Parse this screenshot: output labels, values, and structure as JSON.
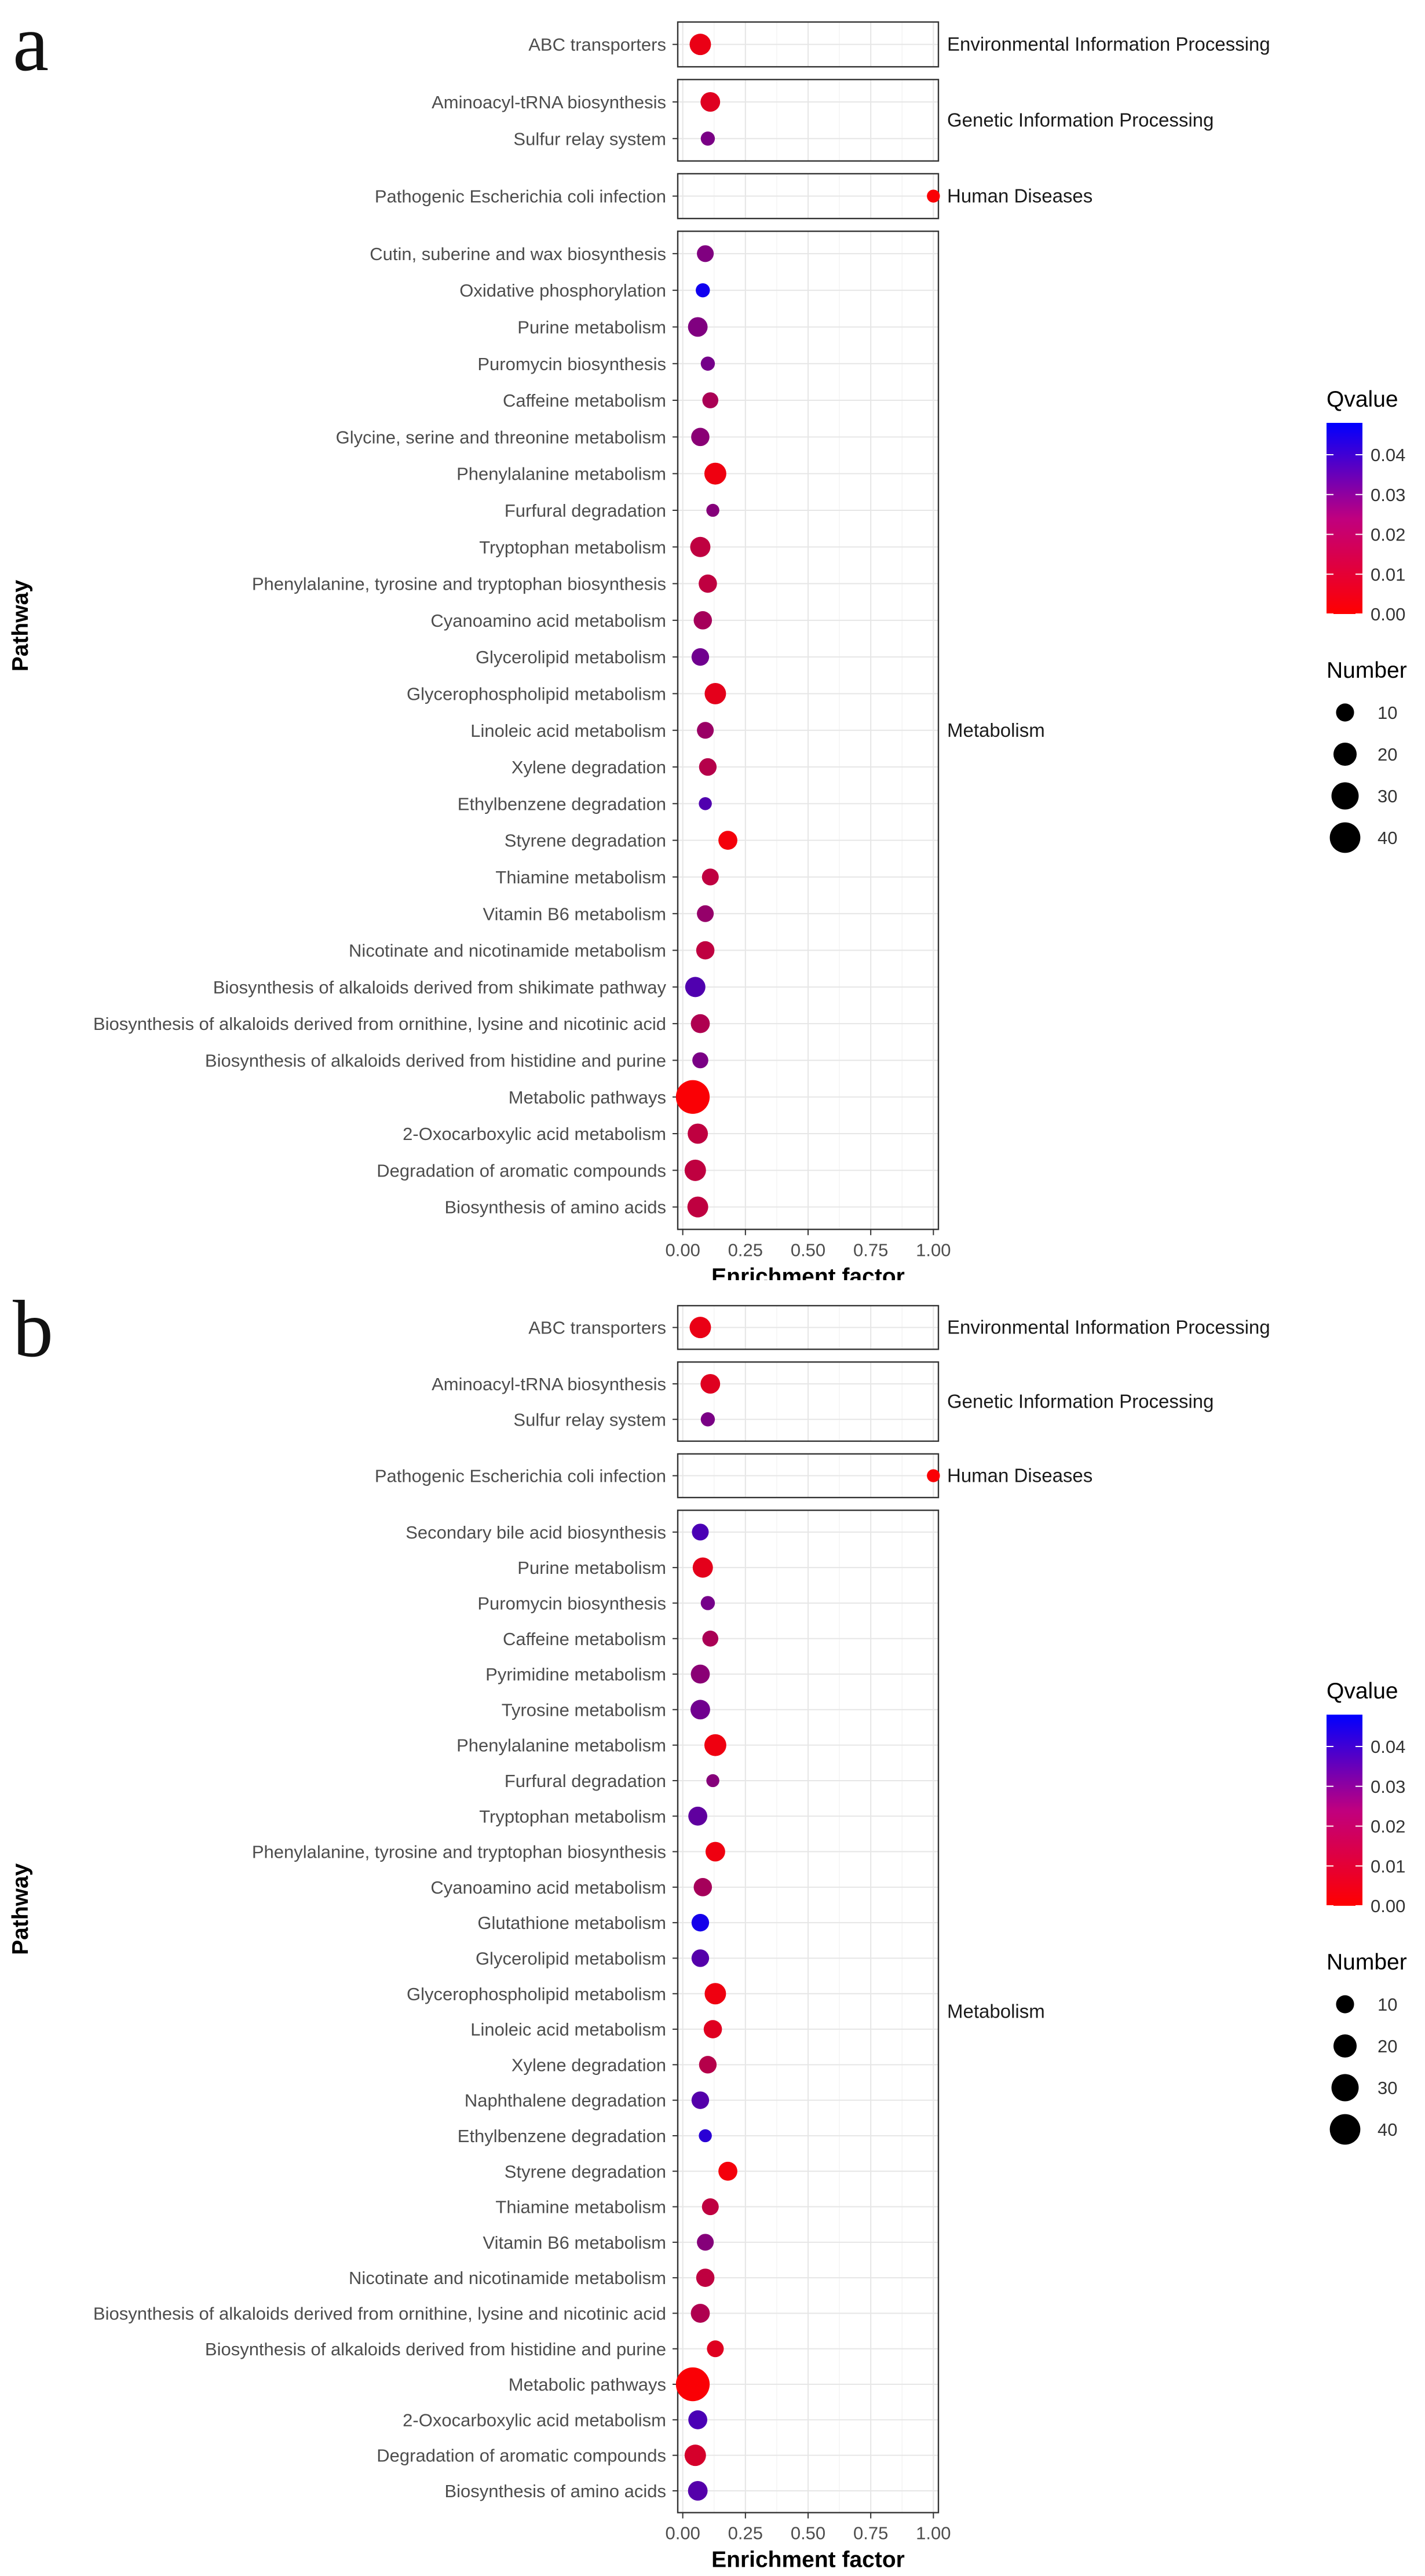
{
  "chart_data": [
    {
      "type": "scatter",
      "panel_letter": "a",
      "xlabel": "Enrichment factor",
      "ylabel": "Pathway",
      "xlim": [
        -0.02,
        1.02
      ],
      "xticks": [
        "0.00",
        "0.25",
        "0.50",
        "0.75",
        "1.00"
      ],
      "color_legend": {
        "title": "Qvalue",
        "ticks": [
          "0.04",
          "0.03",
          "0.02",
          "0.01",
          "0.00"
        ],
        "low_color": "#ff0000",
        "high_color": "#0000ff",
        "max": 0.048
      },
      "size_legend": {
        "title": "Number",
        "values": [
          10,
          20,
          30,
          40
        ]
      },
      "groups": [
        {
          "name": "Environmental Information Processing",
          "pathways": [
            {
              "name": "ABC transporters",
              "x": 0.07,
              "size": 14,
              "q": 0.004
            }
          ]
        },
        {
          "name": "Genetic Information Processing",
          "pathways": [
            {
              "name": "Aminoacyl-tRNA biosynthesis",
              "x": 0.11,
              "size": 11,
              "q": 0.006
            },
            {
              "name": "Sulfur relay system",
              "x": 0.1,
              "size": 4,
              "q": 0.025
            }
          ]
        },
        {
          "name": "Human Diseases",
          "pathways": [
            {
              "name": "Pathogenic Escherichia coli infection",
              "x": 1.0,
              "size": 3,
              "q": 0.001
            }
          ]
        },
        {
          "name": "Metabolism",
          "pathways": [
            {
              "name": "Cutin, suberine and wax biosynthesis",
              "x": 0.09,
              "size": 7,
              "q": 0.024
            },
            {
              "name": "Oxidative phosphorylation",
              "x": 0.08,
              "size": 4,
              "q": 0.045
            },
            {
              "name": "Purine metabolism",
              "x": 0.06,
              "size": 11,
              "q": 0.024
            },
            {
              "name": "Puromycin biosynthesis",
              "x": 0.1,
              "size": 4,
              "q": 0.026
            },
            {
              "name": "Caffeine metabolism",
              "x": 0.11,
              "size": 6,
              "q": 0.016
            },
            {
              "name": "Glycine, serine and threonine metabolism",
              "x": 0.07,
              "size": 9,
              "q": 0.022
            },
            {
              "name": "Phenylalanine metabolism",
              "x": 0.13,
              "size": 15,
              "q": 0.003
            },
            {
              "name": "Furfural degradation",
              "x": 0.12,
              "size": 3,
              "q": 0.023
            },
            {
              "name": "Tryptophan metabolism",
              "x": 0.07,
              "size": 12,
              "q": 0.012
            },
            {
              "name": "Phenylalanine, tyrosine and tryptophan biosynthesis",
              "x": 0.1,
              "size": 9,
              "q": 0.012
            },
            {
              "name": "Cyanoamino acid metabolism",
              "x": 0.08,
              "size": 9,
              "q": 0.017
            },
            {
              "name": "Glycerolipid metabolism",
              "x": 0.07,
              "size": 8,
              "q": 0.027
            },
            {
              "name": "Glycerophospholipid metabolism",
              "x": 0.13,
              "size": 14,
              "q": 0.005
            },
            {
              "name": "Linoleic acid metabolism",
              "x": 0.09,
              "size": 7,
              "q": 0.019
            },
            {
              "name": "Xylene degradation",
              "x": 0.1,
              "size": 8,
              "q": 0.014
            },
            {
              "name": "Ethylbenzene degradation",
              "x": 0.09,
              "size": 3,
              "q": 0.033
            },
            {
              "name": "Styrene degradation",
              "x": 0.18,
              "size": 10,
              "q": 0.002
            },
            {
              "name": "Thiamine metabolism",
              "x": 0.11,
              "size": 7,
              "q": 0.012
            },
            {
              "name": "Vitamin B6 metabolism",
              "x": 0.09,
              "size": 7,
              "q": 0.02
            },
            {
              "name": "Nicotinate and nicotinamide metabolism",
              "x": 0.09,
              "size": 9,
              "q": 0.012
            },
            {
              "name": "Biosynthesis of alkaloids derived from shikimate pathway",
              "x": 0.05,
              "size": 12,
              "q": 0.033
            },
            {
              "name": "Biosynthesis of alkaloids derived from ornithine, lysine and nicotinic acid",
              "x": 0.07,
              "size": 10,
              "q": 0.015
            },
            {
              "name": "Biosynthesis of alkaloids derived from histidine and purine",
              "x": 0.07,
              "size": 6,
              "q": 0.025
            },
            {
              "name": "Metabolic pathways",
              "x": 0.04,
              "size": 45,
              "q": 0.001
            },
            {
              "name": "2-Oxocarboxylic acid metabolism",
              "x": 0.06,
              "size": 12,
              "q": 0.012
            },
            {
              "name": "Degradation of aromatic compounds",
              "x": 0.05,
              "size": 14,
              "q": 0.012
            },
            {
              "name": "Biosynthesis of amino acids",
              "x": 0.06,
              "size": 13,
              "q": 0.012
            }
          ]
        }
      ]
    },
    {
      "type": "scatter",
      "panel_letter": "b",
      "xlabel": "Enrichment factor",
      "ylabel": "Pathway",
      "xlim": [
        -0.02,
        1.02
      ],
      "xticks": [
        "0.00",
        "0.25",
        "0.50",
        "0.75",
        "1.00"
      ],
      "color_legend": {
        "title": "Qvalue",
        "ticks": [
          "0.04",
          "0.03",
          "0.02",
          "0.01",
          "0.00"
        ],
        "low_color": "#ff0000",
        "high_color": "#0000ff",
        "max": 0.048
      },
      "size_legend": {
        "title": "Number",
        "values": [
          10,
          20,
          30,
          40
        ]
      },
      "groups": [
        {
          "name": "Environmental Information Processing",
          "pathways": [
            {
              "name": "ABC transporters",
              "x": 0.07,
              "size": 14,
              "q": 0.004
            }
          ]
        },
        {
          "name": "Genetic Information Processing",
          "pathways": [
            {
              "name": "Aminoacyl-tRNA biosynthesis",
              "x": 0.11,
              "size": 11,
              "q": 0.006
            },
            {
              "name": "Sulfur relay system",
              "x": 0.1,
              "size": 4,
              "q": 0.025
            }
          ]
        },
        {
          "name": "Human Diseases",
          "pathways": [
            {
              "name": "Pathogenic Escherichia coli infection",
              "x": 1.0,
              "size": 3,
              "q": 0.001
            }
          ]
        },
        {
          "name": "Metabolism",
          "pathways": [
            {
              "name": "Secondary bile acid biosynthesis",
              "x": 0.07,
              "size": 7,
              "q": 0.034
            },
            {
              "name": "Purine metabolism",
              "x": 0.08,
              "size": 12,
              "q": 0.005
            },
            {
              "name": "Puromycin biosynthesis",
              "x": 0.1,
              "size": 4,
              "q": 0.026
            },
            {
              "name": "Caffeine metabolism",
              "x": 0.11,
              "size": 6,
              "q": 0.016
            },
            {
              "name": "Pyrimidine metabolism",
              "x": 0.07,
              "size": 10,
              "q": 0.022
            },
            {
              "name": "Tyrosine metabolism",
              "x": 0.07,
              "size": 11,
              "q": 0.027
            },
            {
              "name": "Phenylalanine metabolism",
              "x": 0.13,
              "size": 15,
              "q": 0.003
            },
            {
              "name": "Furfural degradation",
              "x": 0.12,
              "size": 3,
              "q": 0.023
            },
            {
              "name": "Tryptophan metabolism",
              "x": 0.06,
              "size": 10,
              "q": 0.03
            },
            {
              "name": "Phenylalanine, tyrosine and tryptophan biosynthesis",
              "x": 0.13,
              "size": 11,
              "q": 0.003
            },
            {
              "name": "Cyanoamino acid metabolism",
              "x": 0.08,
              "size": 9,
              "q": 0.017
            },
            {
              "name": "Glutathione metabolism",
              "x": 0.07,
              "size": 8,
              "q": 0.044
            },
            {
              "name": "Glycerolipid metabolism",
              "x": 0.07,
              "size": 8,
              "q": 0.032
            },
            {
              "name": "Glycerophospholipid metabolism",
              "x": 0.13,
              "size": 14,
              "q": 0.003
            },
            {
              "name": "Linoleic acid metabolism",
              "x": 0.12,
              "size": 9,
              "q": 0.006
            },
            {
              "name": "Xylene degradation",
              "x": 0.1,
              "size": 8,
              "q": 0.014
            },
            {
              "name": "Naphthalene degradation",
              "x": 0.07,
              "size": 8,
              "q": 0.032
            },
            {
              "name": "Ethylbenzene degradation",
              "x": 0.09,
              "size": 3,
              "q": 0.04
            },
            {
              "name": "Styrene degradation",
              "x": 0.18,
              "size": 10,
              "q": 0.002
            },
            {
              "name": "Thiamine metabolism",
              "x": 0.11,
              "size": 7,
              "q": 0.012
            },
            {
              "name": "Vitamin B6 metabolism",
              "x": 0.09,
              "size": 7,
              "q": 0.023
            },
            {
              "name": "Nicotinate and nicotinamide metabolism",
              "x": 0.09,
              "size": 9,
              "q": 0.012
            },
            {
              "name": "Biosynthesis of alkaloids derived from ornithine, lysine and nicotinic acid",
              "x": 0.07,
              "size": 10,
              "q": 0.015
            },
            {
              "name": "Biosynthesis of alkaloids derived from histidine and purine",
              "x": 0.13,
              "size": 7,
              "q": 0.006
            },
            {
              "name": "Metabolic pathways",
              "x": 0.04,
              "size": 45,
              "q": 0.001
            },
            {
              "name": "2-Oxocarboxylic acid metabolism",
              "x": 0.06,
              "size": 10,
              "q": 0.034
            },
            {
              "name": "Degradation of aromatic compounds",
              "x": 0.05,
              "size": 14,
              "q": 0.008
            },
            {
              "name": "Biosynthesis of amino acids",
              "x": 0.06,
              "size": 11,
              "q": 0.032
            }
          ]
        }
      ]
    }
  ]
}
